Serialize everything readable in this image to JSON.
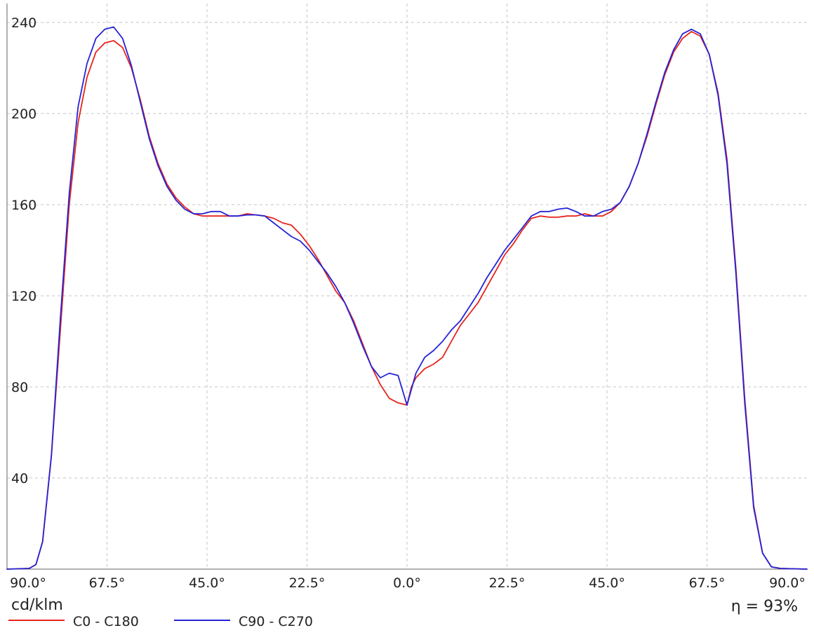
{
  "unit_label": "cd/klm",
  "efficiency_label": "η = 93%",
  "chart_data": {
    "type": "line",
    "title": "",
    "xlabel": "",
    "ylabel": "cd/klm",
    "x_unit": "degrees (left: C180/C270 side, right: C0/C90 side)",
    "xlim": [
      -90,
      90
    ],
    "ylim": [
      0,
      240
    ],
    "grid": true,
    "legend_position": "bottom-left",
    "x_tick_values": [
      -90,
      -67.5,
      -45,
      -22.5,
      0,
      22.5,
      45,
      67.5,
      90
    ],
    "x_tick_labels": [
      "90.0°",
      "67.5°",
      "45.0°",
      "22.5°",
      "0.0°",
      "22.5°",
      "45.0°",
      "67.5°",
      "90.0°"
    ],
    "y_tick_values": [
      40,
      80,
      120,
      160,
      200,
      240
    ],
    "y_tick_labels": [
      "40",
      "80",
      "120",
      "160",
      "200",
      "240"
    ],
    "series": [
      {
        "name": "C0 - C180",
        "color": "#e8231c",
        "points": [
          [
            -90,
            0
          ],
          [
            -85,
            0.3
          ],
          [
            -83.5,
            2
          ],
          [
            -82,
            12
          ],
          [
            -80,
            50
          ],
          [
            -78,
            105
          ],
          [
            -76,
            160
          ],
          [
            -74,
            196
          ],
          [
            -72,
            216
          ],
          [
            -70,
            227
          ],
          [
            -68,
            231
          ],
          [
            -66,
            232
          ],
          [
            -64,
            229
          ],
          [
            -62,
            220
          ],
          [
            -60,
            206
          ],
          [
            -58,
            190
          ],
          [
            -56,
            178
          ],
          [
            -54,
            169
          ],
          [
            -52,
            163
          ],
          [
            -50,
            159
          ],
          [
            -48,
            156
          ],
          [
            -46,
            155
          ],
          [
            -44,
            155
          ],
          [
            -42,
            155
          ],
          [
            -40,
            155
          ],
          [
            -38,
            155
          ],
          [
            -36,
            156
          ],
          [
            -34,
            155.5
          ],
          [
            -32,
            155
          ],
          [
            -30,
            154
          ],
          [
            -28,
            152
          ],
          [
            -26,
            151
          ],
          [
            -24,
            147
          ],
          [
            -22,
            142
          ],
          [
            -20,
            136
          ],
          [
            -18,
            129
          ],
          [
            -16,
            122
          ],
          [
            -14,
            117
          ],
          [
            -12,
            109
          ],
          [
            -10,
            99
          ],
          [
            -8,
            89
          ],
          [
            -6,
            81
          ],
          [
            -4,
            75
          ],
          [
            -2,
            73
          ],
          [
            0,
            72
          ],
          [
            1,
            80
          ],
          [
            2,
            84
          ],
          [
            4,
            88
          ],
          [
            6,
            90
          ],
          [
            8,
            93
          ],
          [
            10,
            100
          ],
          [
            12,
            107
          ],
          [
            14,
            112
          ],
          [
            16,
            117
          ],
          [
            18,
            124
          ],
          [
            20,
            131
          ],
          [
            22,
            138
          ],
          [
            24,
            143
          ],
          [
            26,
            149
          ],
          [
            28,
            154
          ],
          [
            30,
            155
          ],
          [
            32,
            154.5
          ],
          [
            34,
            154.5
          ],
          [
            36,
            155
          ],
          [
            38,
            155
          ],
          [
            40,
            156
          ],
          [
            42,
            155
          ],
          [
            44,
            155
          ],
          [
            46,
            157
          ],
          [
            48,
            161
          ],
          [
            50,
            168
          ],
          [
            52,
            178
          ],
          [
            54,
            190
          ],
          [
            56,
            204
          ],
          [
            58,
            217
          ],
          [
            60,
            227
          ],
          [
            62,
            233
          ],
          [
            64,
            236
          ],
          [
            66,
            234
          ],
          [
            68,
            226
          ],
          [
            70,
            209
          ],
          [
            72,
            180
          ],
          [
            74,
            132
          ],
          [
            76,
            75
          ],
          [
            78,
            28
          ],
          [
            80,
            7
          ],
          [
            82,
            1
          ],
          [
            84,
            0.3
          ],
          [
            90,
            0
          ]
        ]
      },
      {
        "name": "C90 - C270",
        "color": "#2424d6",
        "points": [
          [
            -90,
            0
          ],
          [
            -85,
            0.3
          ],
          [
            -83.5,
            2
          ],
          [
            -82,
            12
          ],
          [
            -80,
            50
          ],
          [
            -78,
            110
          ],
          [
            -76,
            165
          ],
          [
            -74,
            203
          ],
          [
            -72,
            222
          ],
          [
            -70,
            233
          ],
          [
            -68,
            237
          ],
          [
            -66,
            238
          ],
          [
            -64,
            233
          ],
          [
            -62,
            221
          ],
          [
            -60,
            205
          ],
          [
            -58,
            189
          ],
          [
            -56,
            177
          ],
          [
            -54,
            168
          ],
          [
            -52,
            162
          ],
          [
            -50,
            158
          ],
          [
            -48,
            156
          ],
          [
            -46,
            156
          ],
          [
            -44,
            157
          ],
          [
            -42,
            157
          ],
          [
            -40,
            155
          ],
          [
            -38,
            155
          ],
          [
            -36,
            155.5
          ],
          [
            -34,
            155.5
          ],
          [
            -32,
            155
          ],
          [
            -30,
            152
          ],
          [
            -28,
            149
          ],
          [
            -26,
            146
          ],
          [
            -24,
            144
          ],
          [
            -22,
            140
          ],
          [
            -20,
            135
          ],
          [
            -18,
            130
          ],
          [
            -16,
            124
          ],
          [
            -14,
            117
          ],
          [
            -12,
            108
          ],
          [
            -10,
            98
          ],
          [
            -8,
            89
          ],
          [
            -6,
            84
          ],
          [
            -4,
            86
          ],
          [
            -2,
            85
          ],
          [
            0,
            72
          ],
          [
            2,
            86
          ],
          [
            4,
            93
          ],
          [
            6,
            96
          ],
          [
            8,
            100
          ],
          [
            10,
            105
          ],
          [
            12,
            109
          ],
          [
            14,
            115
          ],
          [
            16,
            121
          ],
          [
            18,
            128
          ],
          [
            20,
            134
          ],
          [
            22,
            140
          ],
          [
            24,
            145
          ],
          [
            26,
            150
          ],
          [
            28,
            155
          ],
          [
            30,
            157
          ],
          [
            32,
            157
          ],
          [
            34,
            158
          ],
          [
            36,
            158.5
          ],
          [
            38,
            157
          ],
          [
            40,
            155
          ],
          [
            42,
            155
          ],
          [
            44,
            157
          ],
          [
            46,
            158
          ],
          [
            48,
            161
          ],
          [
            50,
            168
          ],
          [
            52,
            178
          ],
          [
            54,
            191
          ],
          [
            56,
            205
          ],
          [
            58,
            218
          ],
          [
            60,
            228
          ],
          [
            62,
            235
          ],
          [
            64,
            237
          ],
          [
            66,
            235
          ],
          [
            68,
            226
          ],
          [
            70,
            208
          ],
          [
            72,
            178
          ],
          [
            74,
            130
          ],
          [
            76,
            73
          ],
          [
            78,
            27
          ],
          [
            80,
            7
          ],
          [
            82,
            1
          ],
          [
            84,
            0.3
          ],
          [
            90,
            0
          ]
        ]
      }
    ]
  }
}
